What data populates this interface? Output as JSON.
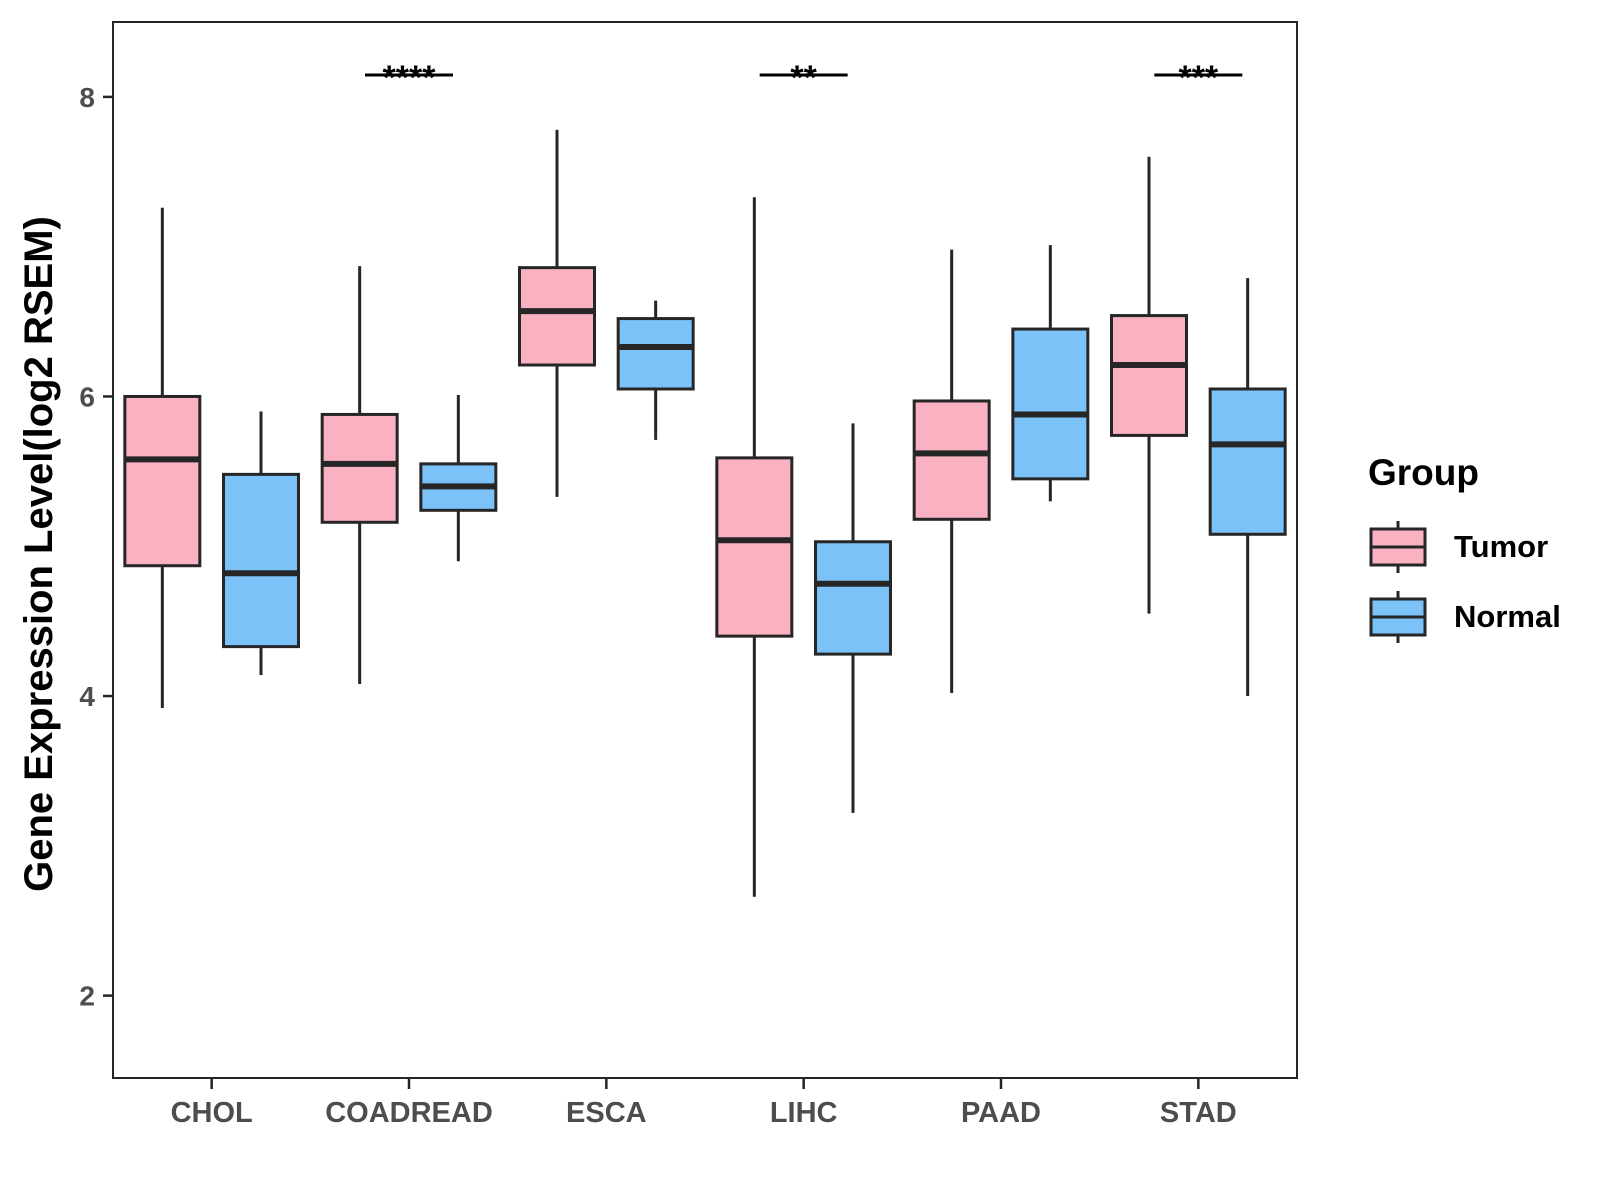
{
  "chart_data": {
    "type": "boxplot",
    "title": "",
    "xlabel": "",
    "ylabel": "Gene Expression Level(log2 RSEM)",
    "ylim": [
      1.45,
      8.5
    ],
    "yticks": [
      2,
      4,
      6,
      8
    ],
    "categories": [
      "CHOL",
      "COADREAD",
      "ESCA",
      "LIHC",
      "PAAD",
      "STAD"
    ],
    "legend": {
      "title": "Group",
      "position": "right",
      "entries": [
        {
          "name": "Tumor",
          "color": "#fab1c1"
        },
        {
          "name": "Normal",
          "color": "#7bc2f8"
        }
      ]
    },
    "series": [
      {
        "name": "Tumor",
        "color": "#fab1c1",
        "boxes": [
          {
            "min": 3.92,
            "q1": 4.87,
            "median": 5.58,
            "q3": 6.0,
            "max": 7.26
          },
          {
            "min": 4.08,
            "q1": 5.16,
            "median": 5.55,
            "q3": 5.88,
            "max": 6.87
          },
          {
            "min": 5.33,
            "q1": 6.21,
            "median": 6.57,
            "q3": 6.86,
            "max": 7.78
          },
          {
            "min": 2.66,
            "q1": 4.4,
            "median": 5.04,
            "q3": 5.59,
            "max": 7.33
          },
          {
            "min": 4.02,
            "q1": 5.18,
            "median": 5.62,
            "q3": 5.97,
            "max": 6.98
          },
          {
            "min": 4.55,
            "q1": 5.74,
            "median": 6.21,
            "q3": 6.54,
            "max": 7.6
          }
        ]
      },
      {
        "name": "Normal",
        "color": "#7bc2f8",
        "boxes": [
          {
            "min": 4.14,
            "q1": 4.33,
            "median": 4.82,
            "q3": 5.48,
            "max": 5.9
          },
          {
            "min": 4.9,
            "q1": 5.24,
            "median": 5.4,
            "q3": 5.55,
            "max": 6.01
          },
          {
            "min": 5.71,
            "q1": 6.05,
            "median": 6.33,
            "q3": 6.52,
            "max": 6.64
          },
          {
            "min": 3.22,
            "q1": 4.28,
            "median": 4.75,
            "q3": 5.03,
            "max": 5.82
          },
          {
            "min": 5.3,
            "q1": 5.45,
            "median": 5.88,
            "q3": 6.45,
            "max": 7.01
          },
          {
            "min": 4.0,
            "q1": 5.08,
            "median": 5.68,
            "q3": 6.05,
            "max": 6.79
          }
        ]
      }
    ],
    "significance": [
      {
        "category": "COADREAD",
        "label": "****"
      },
      {
        "category": "LIHC",
        "label": "**"
      },
      {
        "category": "STAD",
        "label": "***"
      }
    ]
  }
}
